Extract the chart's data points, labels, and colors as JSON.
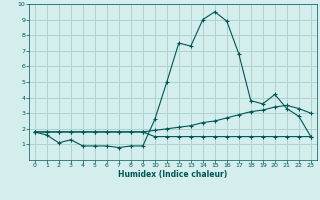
{
  "xlabel": "Humidex (Indice chaleur)",
  "background_color": "#d4eeed",
  "grid_color": "#aed4d0",
  "line_color": "#005555",
  "xlim": [
    -0.5,
    23.5
  ],
  "ylim": [
    0,
    10
  ],
  "xticks": [
    0,
    1,
    2,
    3,
    4,
    5,
    6,
    7,
    8,
    9,
    10,
    11,
    12,
    13,
    14,
    15,
    16,
    17,
    18,
    19,
    20,
    21,
    22,
    23
  ],
  "yticks": [
    1,
    2,
    3,
    4,
    5,
    6,
    7,
    8,
    9,
    10
  ],
  "line1_x": [
    0,
    1,
    2,
    3,
    4,
    5,
    6,
    7,
    8,
    9,
    10,
    11,
    12,
    13,
    14,
    15,
    16,
    17,
    18,
    19,
    20,
    21,
    22,
    23
  ],
  "line1_y": [
    1.8,
    1.6,
    1.1,
    1.3,
    0.9,
    0.9,
    0.9,
    0.8,
    0.9,
    0.9,
    2.6,
    5.0,
    7.5,
    7.3,
    9.0,
    9.5,
    8.9,
    6.8,
    3.8,
    3.6,
    4.2,
    3.3,
    2.8,
    1.5
  ],
  "line2_x": [
    0,
    1,
    2,
    3,
    4,
    5,
    6,
    7,
    8,
    9,
    10,
    11,
    12,
    13,
    14,
    15,
    16,
    17,
    18,
    19,
    20,
    21,
    22,
    23
  ],
  "line2_y": [
    1.8,
    1.8,
    1.8,
    1.8,
    1.8,
    1.8,
    1.8,
    1.8,
    1.8,
    1.8,
    1.9,
    2.0,
    2.1,
    2.2,
    2.4,
    2.5,
    2.7,
    2.9,
    3.1,
    3.2,
    3.4,
    3.5,
    3.3,
    3.0
  ],
  "line3_x": [
    0,
    1,
    2,
    3,
    4,
    5,
    6,
    7,
    8,
    9,
    10,
    11,
    12,
    13,
    14,
    15,
    16,
    17,
    18,
    19,
    20,
    21,
    22,
    23
  ],
  "line3_y": [
    1.8,
    1.8,
    1.8,
    1.8,
    1.8,
    1.8,
    1.8,
    1.8,
    1.8,
    1.8,
    1.5,
    1.5,
    1.5,
    1.5,
    1.5,
    1.5,
    1.5,
    1.5,
    1.5,
    1.5,
    1.5,
    1.5,
    1.5,
    1.5
  ]
}
